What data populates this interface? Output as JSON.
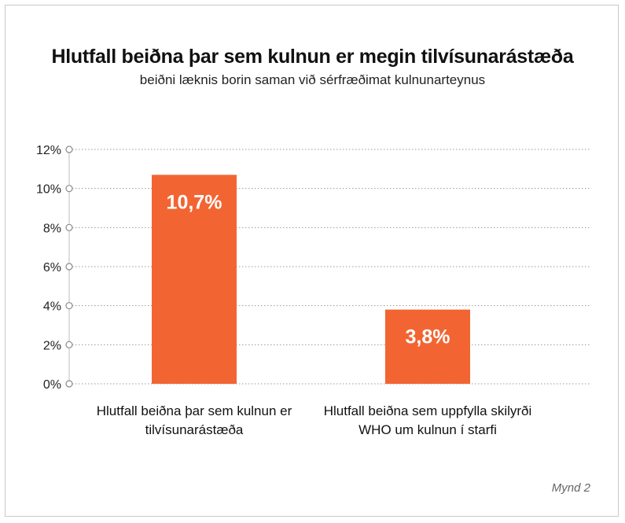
{
  "chart_data": {
    "type": "bar",
    "title": "Hlutfall beiðna þar sem kulnun er megin tilvísunarástæða",
    "subtitle": "beiðni læknis borin saman við sérfræðimat kulnunarteynus",
    "categories": [
      [
        "Hlutfall beiðna þar sem kulnun er",
        "tilvísunarástæða"
      ],
      [
        "Hlutfall beiðna sem uppfylla skilyrði",
        "WHO um kulnun í starfi"
      ]
    ],
    "values": [
      10.7,
      3.8
    ],
    "data_labels": [
      "10,7%",
      "3,8%"
    ],
    "ylim": [
      0,
      12
    ],
    "yticks": [
      0,
      2,
      4,
      6,
      8,
      10,
      12
    ],
    "ytick_labels": [
      "0%",
      "2%",
      "4%",
      "6%",
      "8%",
      "10%",
      "12%"
    ],
    "grid": true,
    "bar_color": "#f26532"
  },
  "footer": "Mynd 2"
}
